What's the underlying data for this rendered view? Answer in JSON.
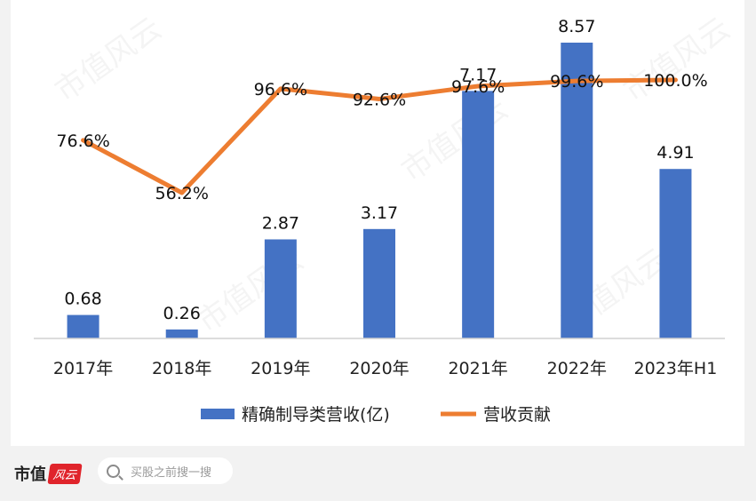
{
  "chart_data": {
    "type": "bar+line",
    "categories": [
      "2017年",
      "2018年",
      "2019年",
      "2020年",
      "2021年",
      "2022年",
      "2023年H1"
    ],
    "series": [
      {
        "name": "精确制导类营收(亿)",
        "type": "bar",
        "values": [
          0.68,
          0.26,
          2.87,
          3.17,
          7.17,
          8.57,
          4.91
        ],
        "labels": [
          "0.68",
          "0.26",
          "2.87",
          "3.17",
          "7.17",
          "8.57",
          "4.91"
        ],
        "color": "#4472c4"
      },
      {
        "name": "营收贡献",
        "type": "line",
        "values": [
          76.6,
          56.2,
          96.6,
          92.6,
          97.6,
          99.6,
          100.0
        ],
        "labels": [
          "76.6%",
          "56.2%",
          "96.6%",
          "92.6%",
          "97.6%",
          "99.6%",
          "100.0%"
        ],
        "color": "#ed7d31"
      }
    ],
    "legend_position": "bottom",
    "grid": false
  },
  "watermark": {
    "text": "市值风云"
  },
  "footer": {
    "brand": "市值",
    "brand_badge": "风云",
    "search_placeholder": "买股之前搜一搜"
  }
}
